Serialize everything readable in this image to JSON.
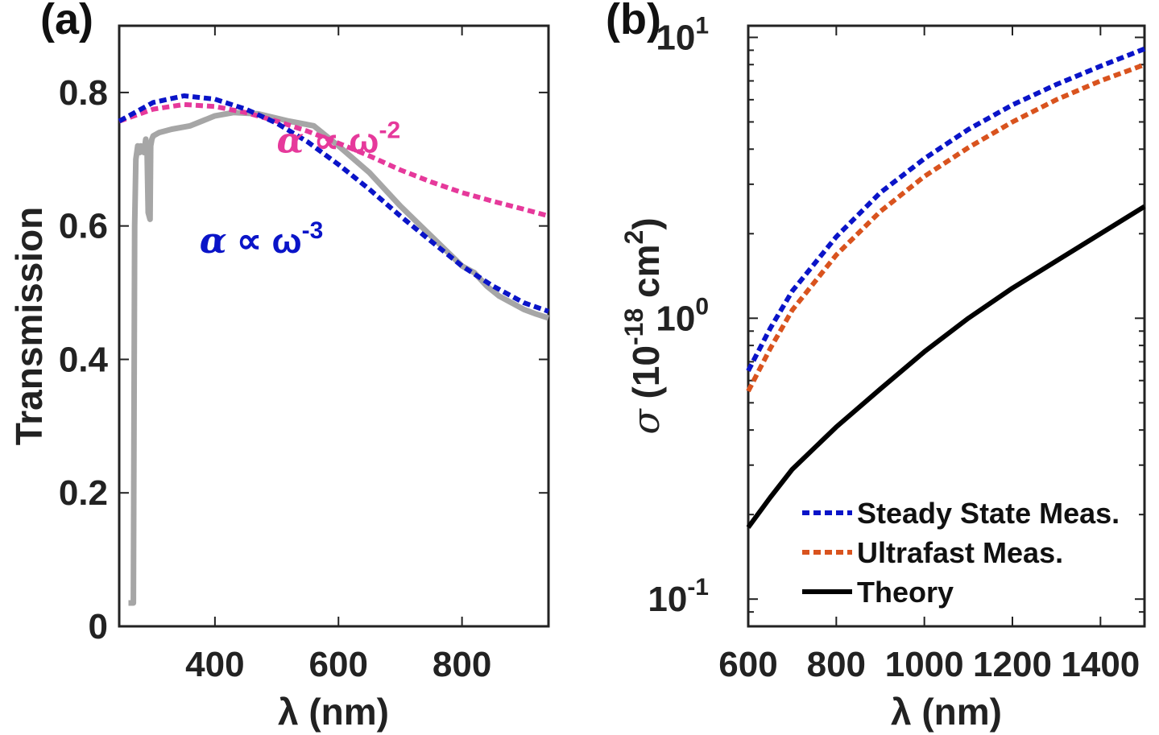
{
  "chart_data": [
    {
      "panel_label": "(a)",
      "type": "line",
      "xlabel": "λ (nm)",
      "ylabel": "Transmission",
      "xlim": [
        245,
        940
      ],
      "ylim": [
        0,
        0.9
      ],
      "xticks": [
        400,
        600,
        800
      ],
      "yticks": [
        0,
        0.2,
        0.4,
        0.6,
        0.8
      ],
      "ytick_labels": [
        "0",
        "0.2",
        "0.4",
        "0.6",
        "0.8"
      ],
      "grid": false,
      "series": [
        {
          "style": "solid",
          "color": "#a6a6a6",
          "x": [
            260,
            268,
            270,
            272,
            275,
            278,
            280,
            285,
            288,
            290,
            292,
            295,
            296,
            298,
            300,
            310,
            330,
            360,
            400,
            430,
            470,
            520,
            560,
            600,
            650,
            700,
            750,
            800,
            820,
            840,
            860,
            880,
            900,
            920,
            940
          ],
          "y": [
            0.035,
            0.035,
            0.6,
            0.7,
            0.72,
            0.71,
            0.72,
            0.71,
            0.73,
            0.72,
            0.62,
            0.61,
            0.72,
            0.73,
            0.735,
            0.74,
            0.745,
            0.75,
            0.765,
            0.77,
            0.768,
            0.757,
            0.75,
            0.72,
            0.68,
            0.63,
            0.585,
            0.54,
            0.53,
            0.51,
            0.495,
            0.485,
            0.475,
            0.468,
            0.462
          ]
        },
        {
          "style": "dotted",
          "color": "#e6399b",
          "x": [
            245,
            300,
            350,
            400,
            450,
            500,
            550,
            600,
            650,
            700,
            750,
            800,
            850,
            900,
            940
          ],
          "y": [
            0.757,
            0.775,
            0.782,
            0.779,
            0.77,
            0.757,
            0.742,
            0.724,
            0.705,
            0.684,
            0.666,
            0.65,
            0.637,
            0.625,
            0.615
          ]
        },
        {
          "style": "dotted",
          "color": "#0a14c8",
          "x": [
            245,
            300,
            350,
            400,
            450,
            500,
            550,
            600,
            650,
            700,
            750,
            800,
            850,
            900,
            940
          ],
          "y": [
            0.757,
            0.785,
            0.795,
            0.79,
            0.775,
            0.754,
            0.726,
            0.692,
            0.655,
            0.615,
            0.577,
            0.54,
            0.51,
            0.485,
            0.472
          ]
        }
      ],
      "annotations": [
        {
          "greek": "α",
          "rel": "∝",
          "base": "ω",
          "exp": "-2",
          "color": "#e6399b",
          "x": 500,
          "y": 0.71
        },
        {
          "greek": "α",
          "rel": "∝",
          "base": "ω",
          "exp": "-3",
          "color": "#0a14c8",
          "x": 375,
          "y": 0.56
        }
      ]
    },
    {
      "panel_label": "(b)",
      "type": "line",
      "xlabel": "λ (nm)",
      "ylabel": {
        "symbol": "σ",
        "prefix": "(10",
        "exp": "-18",
        "unit": " cm",
        "unit_exp": "2",
        "suffix": ")"
      },
      "yscale": "log",
      "xlim": [
        600,
        1500
      ],
      "ylim": [
        0.08,
        11
      ],
      "xticks": [
        600,
        800,
        1000,
        1200,
        1400
      ],
      "yticks": [
        0.1,
        1,
        10
      ],
      "ytick_labels": [
        {
          "base": "10",
          "exp": "-1"
        },
        {
          "base": "10",
          "exp": "0"
        },
        {
          "base": "10",
          "exp": "1"
        }
      ],
      "grid": false,
      "legend_position": "bottom-right",
      "series": [
        {
          "name": "Steady State Meas.",
          "style": "dotted",
          "color": "#0a14c8",
          "x": [
            600,
            650,
            700,
            800,
            900,
            1000,
            1100,
            1200,
            1300,
            1400,
            1500
          ],
          "y": [
            0.65,
            0.92,
            1.25,
            1.95,
            2.8,
            3.7,
            4.7,
            5.75,
            6.8,
            7.9,
            9.1
          ]
        },
        {
          "name": "Ultrafast Meas.",
          "style": "dotted",
          "color": "#d9531e",
          "x": [
            600,
            650,
            700,
            800,
            900,
            1000,
            1100,
            1200,
            1300,
            1400,
            1500
          ],
          "y": [
            0.55,
            0.78,
            1.07,
            1.68,
            2.4,
            3.2,
            4.05,
            5.0,
            6.0,
            7.0,
            8.0
          ]
        },
        {
          "name": "Theory",
          "style": "solid",
          "color": "#000000",
          "x": [
            600,
            650,
            700,
            800,
            900,
            1000,
            1100,
            1200,
            1300,
            1400,
            1500
          ],
          "y": [
            0.18,
            0.23,
            0.29,
            0.41,
            0.56,
            0.76,
            1.0,
            1.28,
            1.6,
            2.0,
            2.5
          ]
        }
      ]
    }
  ]
}
